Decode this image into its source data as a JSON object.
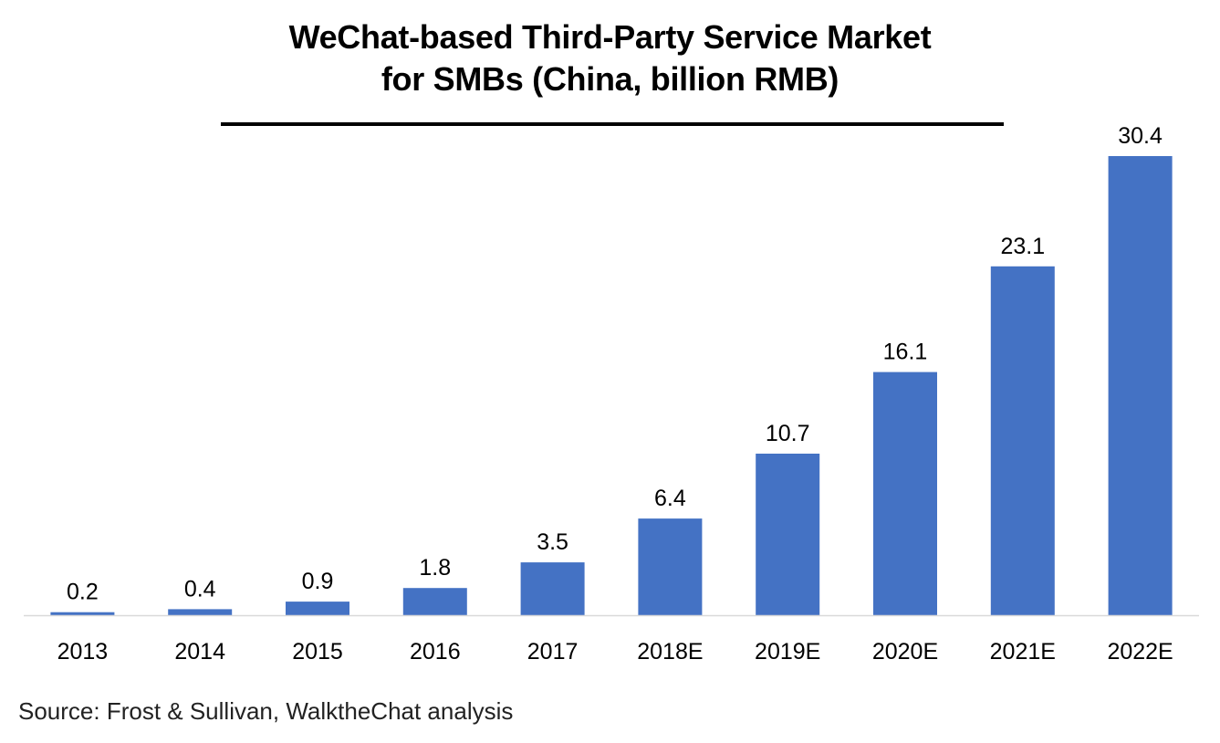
{
  "chart_data": {
    "type": "bar",
    "title_lines": [
      "WeChat-based Third-Party Service Market",
      "for SMBs (China, billion RMB)"
    ],
    "categories": [
      "2013",
      "2014",
      "2015",
      "2016",
      "2017",
      "2018E",
      "2019E",
      "2020E",
      "2021E",
      "2022E"
    ],
    "values": [
      0.2,
      0.4,
      0.9,
      1.8,
      3.5,
      6.4,
      10.7,
      16.1,
      23.1,
      30.4
    ],
    "data_labels": [
      "0.2",
      "0.4",
      "0.9",
      "1.8",
      "3.5",
      "6.4",
      "10.7",
      "16.1",
      "23.1",
      "30.4"
    ],
    "xlabel": "",
    "ylabel": "",
    "ylim": [
      0,
      30.4
    ],
    "grid": false,
    "legend": "none",
    "bar_color": "#4472C4",
    "axis_color": "#D9D9D9"
  },
  "source_note": "Source: Frost & Sullivan, WalktheChat analysis"
}
